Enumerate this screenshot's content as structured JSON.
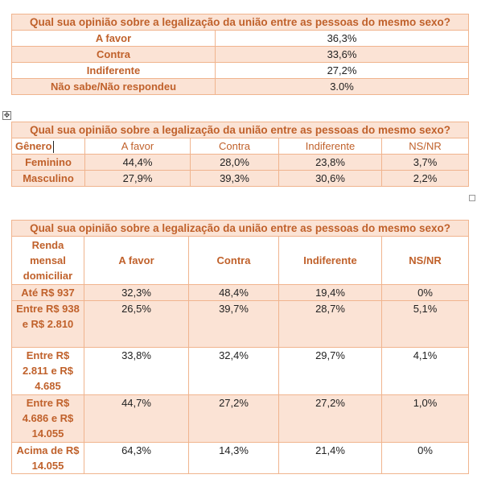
{
  "table1": {
    "title": "Qual sua opinião sobre a legalização da união entre as pessoas do mesmo sexo?",
    "rows": [
      {
        "label": "A favor",
        "value": "36,3%"
      },
      {
        "label": "Contra",
        "value": "33,6%"
      },
      {
        "label": "Indiferente",
        "value": "27,2%"
      },
      {
        "label": "Não sabe/Não respondeu",
        "value": "3.0%"
      }
    ]
  },
  "table2": {
    "title": "Qual sua opinião sobre a legalização da união entre as pessoas do mesmo sexo?",
    "headers": [
      "Gênero",
      "A favor",
      "Contra",
      "Indiferente",
      "NS/NR"
    ],
    "rows": [
      {
        "label": "Feminino",
        "values": [
          "44,4%",
          "28,0%",
          "23,8%",
          "3,7%"
        ]
      },
      {
        "label": "Masculino",
        "values": [
          "27,9%",
          "39,3%",
          "30,6%",
          "2,2%"
        ]
      }
    ]
  },
  "table3": {
    "title": "Qual sua opinião sobre a legalização da união entre as pessoas do mesmo sexo?",
    "headers": [
      "Renda mensal domiciliar",
      "A favor",
      "Contra",
      "Indiferente",
      "NS/NR"
    ],
    "rows": [
      {
        "label": "Até R$ 937",
        "values": [
          "32,3%",
          "48,4%",
          "19,4%",
          "0%"
        ]
      },
      {
        "label": "Entre R$ 938 e R$ 2.810",
        "values": [
          "26,5%",
          "39,7%",
          "28,7%",
          "5,1%"
        ]
      },
      {
        "label": "Entre R$ 2.811 e R$ 4.685",
        "values": [
          "33,8%",
          "32,4%",
          "29,7%",
          "4,1%"
        ]
      },
      {
        "label": "Entre R$ 4.686 e R$ 14.055",
        "values": [
          "44,7%",
          "27,2%",
          "27,2%",
          "1,0%"
        ]
      },
      {
        "label": "Acima de R$ 14.055",
        "values": [
          "64,3%",
          "14,3%",
          "21,4%",
          "0%"
        ]
      }
    ]
  },
  "editor": {
    "move_handle_glyph": "✥"
  }
}
